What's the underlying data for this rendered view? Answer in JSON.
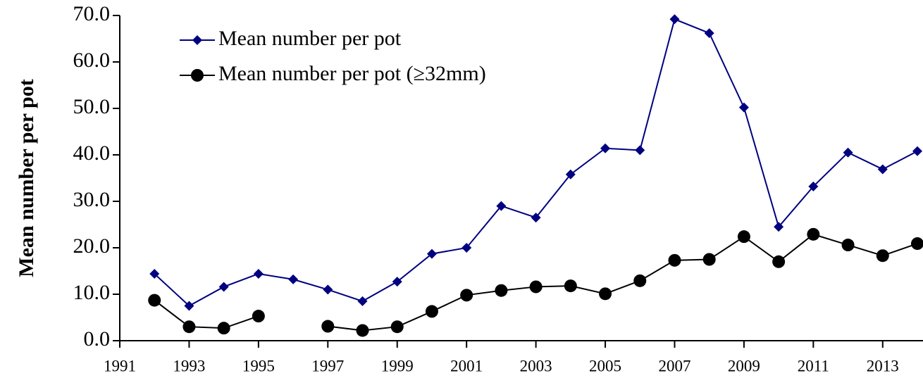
{
  "chart_data": {
    "type": "line",
    "y_label": "Mean number per pot",
    "x": [
      1992,
      1993,
      1994,
      1995,
      1996,
      1997,
      1998,
      1999,
      2000,
      2001,
      2002,
      2003,
      2004,
      2005,
      2006,
      2007,
      2008,
      2009,
      2010,
      2011,
      2012,
      2013,
      2014
    ],
    "series": [
      {
        "name": "Mean number per pot",
        "color": "#000080",
        "marker": "diamond",
        "values": [
          14.4,
          7.5,
          11.6,
          14.4,
          13.2,
          11.0,
          8.5,
          12.7,
          18.7,
          20.0,
          29.0,
          26.5,
          35.8,
          41.4,
          41.0,
          69.2,
          66.2,
          50.2,
          24.5,
          33.2,
          40.5,
          36.9,
          40.8
        ]
      },
      {
        "name": "Mean number per pot (≥32mm)",
        "color": "#000000",
        "marker": "circle",
        "values": [
          8.7,
          3.0,
          2.7,
          5.3,
          null,
          3.1,
          2.2,
          3.0,
          6.3,
          9.8,
          10.8,
          11.6,
          11.8,
          10.1,
          12.9,
          17.3,
          17.5,
          22.4,
          17.0,
          22.9,
          20.6,
          18.3,
          20.9
        ]
      }
    ],
    "xlim": [
      1991,
      2014
    ],
    "xticks": [
      1991,
      1993,
      1995,
      1997,
      1999,
      2001,
      2003,
      2005,
      2007,
      2009,
      2011,
      2013
    ],
    "ylim": [
      0,
      70
    ],
    "yticks": [
      {
        "value": 0,
        "label": "0.0"
      },
      {
        "value": 10,
        "label": "10.0"
      },
      {
        "value": 20,
        "label": "20.0"
      },
      {
        "value": 30,
        "label": "30.0"
      },
      {
        "value": 40,
        "label": "40.0"
      },
      {
        "value": 50,
        "label": "50.0"
      },
      {
        "value": 60,
        "label": "60.0"
      },
      {
        "value": 70,
        "label": "70.0"
      }
    ],
    "legend": "upper left",
    "grid": false
  }
}
